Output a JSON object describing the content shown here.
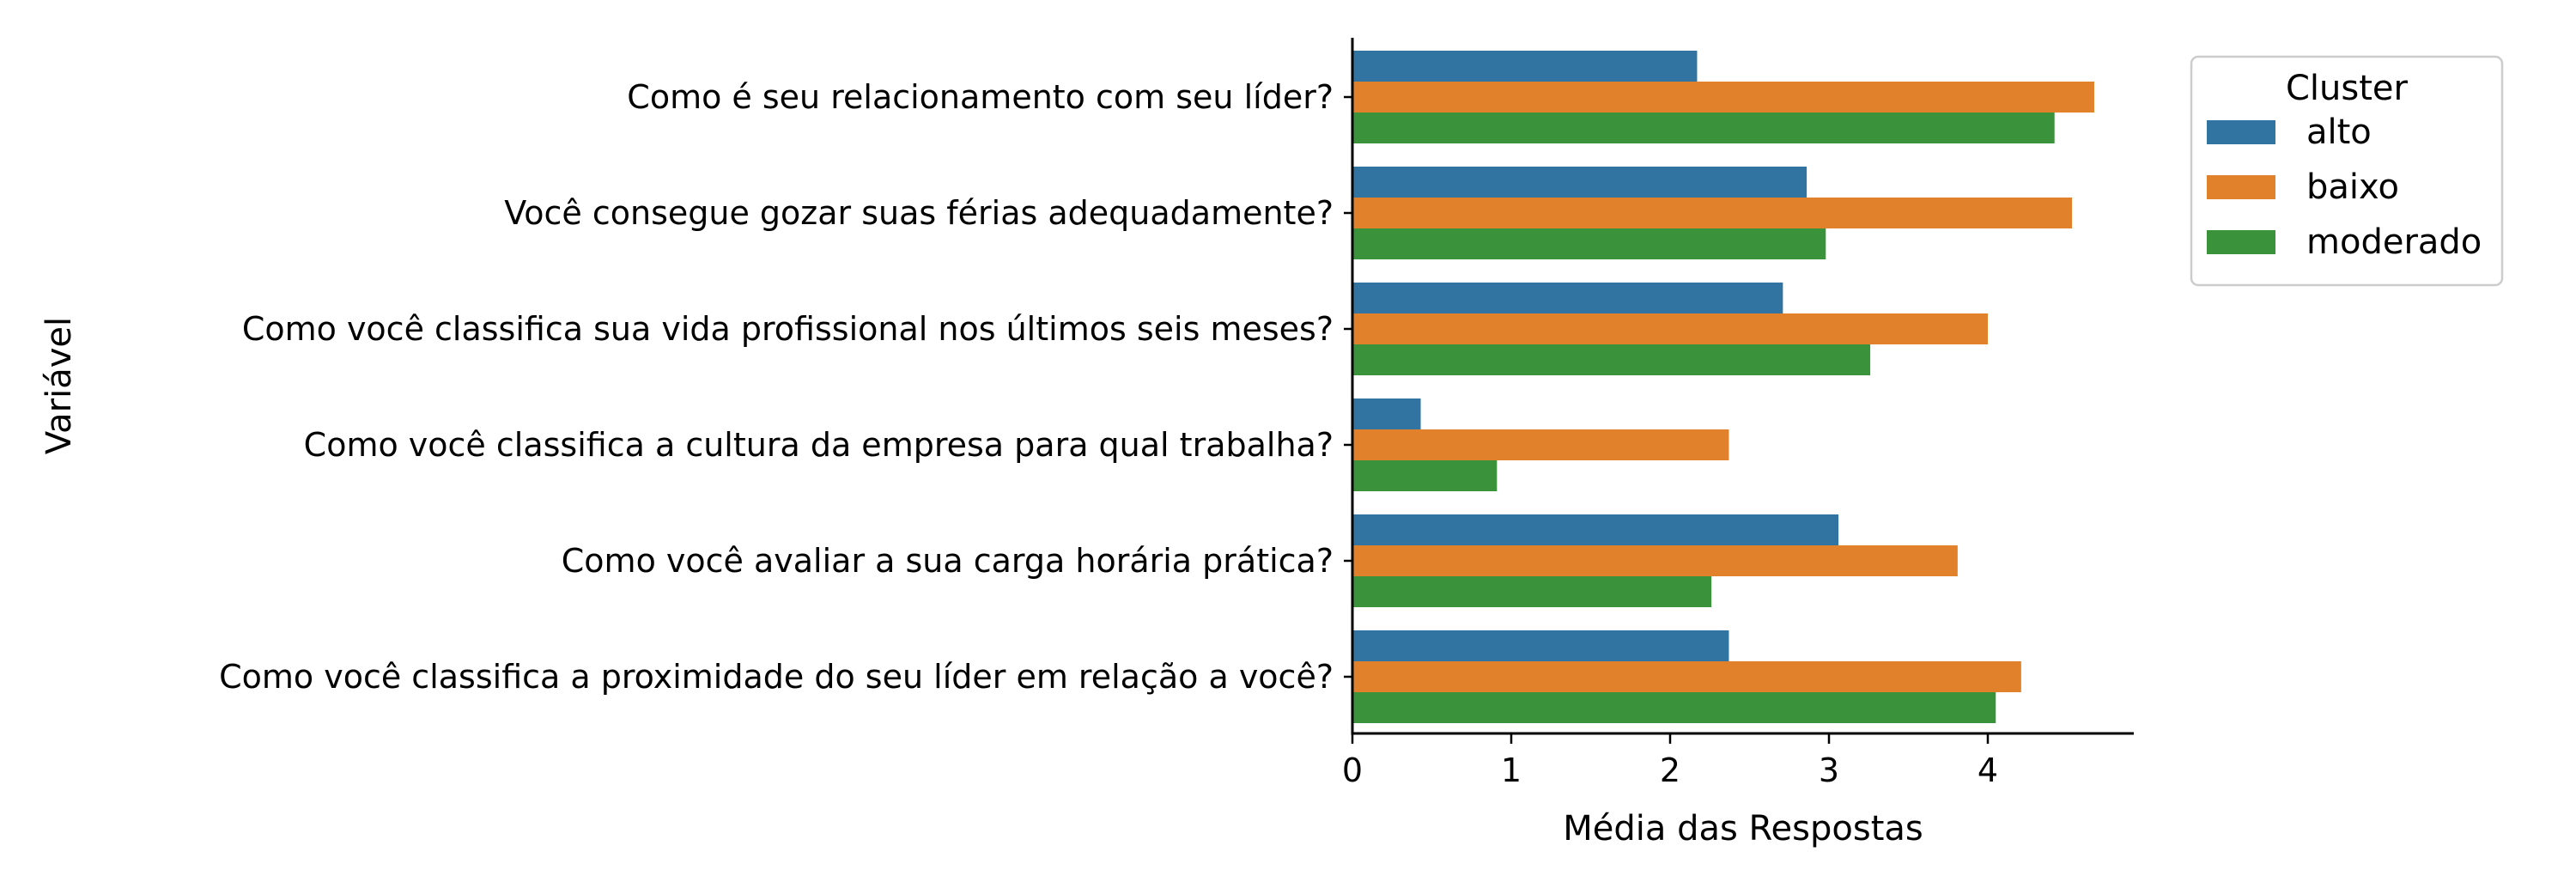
{
  "chart_data": {
    "type": "bar",
    "orientation": "horizontal",
    "title": "",
    "xlabel": "Média das Respostas",
    "ylabel": "Variável",
    "xlim": [
      0,
      4.9
    ],
    "xticks": [
      0,
      1,
      2,
      3,
      4
    ],
    "grid": false,
    "legend": {
      "title": "Cluster",
      "placement": "top-right"
    },
    "categories": [
      "Como é seu relacionamento com seu líder?",
      "Você consegue gozar suas férias adequadamente?",
      "Como você classifica sua vida profissional nos últimos seis meses?",
      "Como você classifica a cultura da empresa para qual trabalha?",
      "Como você avaliar a sua carga horária prática?",
      "Como você classifica a proximidade do seu líder em relação a você?"
    ],
    "series": [
      {
        "name": "alto",
        "color": "#3274a1",
        "values": [
          2.17,
          2.86,
          2.71,
          0.43,
          3.06,
          2.37
        ]
      },
      {
        "name": "baixo",
        "color": "#e1812c",
        "values": [
          4.67,
          4.53,
          4.0,
          2.37,
          3.81,
          4.21
        ]
      },
      {
        "name": "moderado",
        "color": "#3a923a",
        "values": [
          4.42,
          2.98,
          3.26,
          0.91,
          2.26,
          4.05
        ]
      }
    ]
  }
}
